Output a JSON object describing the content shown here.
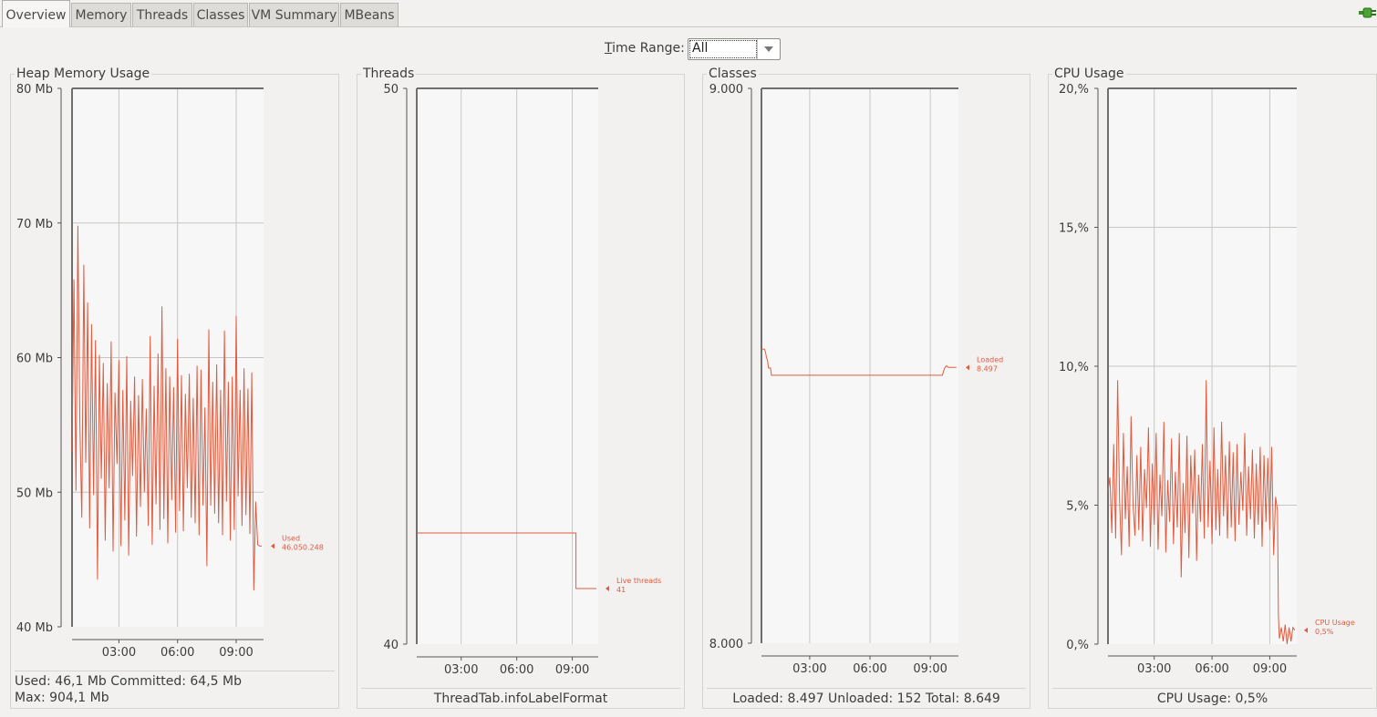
{
  "tabs": [
    {
      "label": "Overview",
      "active": true
    },
    {
      "label": "Memory",
      "active": false
    },
    {
      "label": "Threads",
      "active": false
    },
    {
      "label": "Classes",
      "active": false
    },
    {
      "label": "VM Summary",
      "active": false
    },
    {
      "label": "MBeans",
      "active": false
    }
  ],
  "connection_icon": "plug-connected-icon",
  "time_range": {
    "label_mnemonic": "T",
    "label_rest": "ime Range:",
    "value": "All"
  },
  "colors": {
    "series": "#e05a3e",
    "grid": "#c8c6c2",
    "plot_bg": "#f7f7f7"
  },
  "panels": {
    "heap": {
      "title": "Heap Memory Usage",
      "footer_line1": "Used: 46,1 Mb    Committed: 64,5 Mb",
      "footer_line2": "Max: 904,1 Mb"
    },
    "threads": {
      "title": "Threads",
      "footer": "ThreadTab.infoLabelFormat"
    },
    "classes": {
      "title": "Classes",
      "footer": "Loaded: 8.497    Unloaded: 152    Total: 8.649"
    },
    "cpu": {
      "title": "CPU Usage",
      "footer": "CPU Usage: 0,5%"
    }
  },
  "chart_data": [
    {
      "id": "heap",
      "type": "line",
      "y_ticks": [
        "80 Mb",
        "70 Mb",
        "60 Mb",
        "50 Mb",
        "40 Mb"
      ],
      "ylim": [
        40,
        80
      ],
      "y_unit": "Mb",
      "x_ticks": [
        "03:00",
        "06:00",
        "09:00"
      ],
      "xlim": [
        0.6,
        10.4
      ],
      "series": [
        {
          "name": "Used",
          "last_value_label": "46.050.248",
          "x": [
            0.6,
            0.7,
            0.8,
            0.9,
            1.0,
            1.1,
            1.2,
            1.3,
            1.4,
            1.5,
            1.6,
            1.7,
            1.8,
            1.9,
            2.0,
            2.1,
            2.2,
            2.3,
            2.4,
            2.5,
            2.6,
            2.7,
            2.8,
            2.9,
            3.0,
            3.1,
            3.2,
            3.3,
            3.4,
            3.5,
            3.6,
            3.7,
            3.8,
            3.9,
            4.0,
            4.1,
            4.2,
            4.3,
            4.4,
            4.5,
            4.6,
            4.7,
            4.8,
            4.9,
            5.0,
            5.1,
            5.2,
            5.3,
            5.4,
            5.5,
            5.6,
            5.7,
            5.8,
            5.9,
            6.0,
            6.1,
            6.2,
            6.3,
            6.4,
            6.5,
            6.6,
            6.7,
            6.8,
            6.9,
            7.0,
            7.1,
            7.2,
            7.3,
            7.4,
            7.5,
            7.6,
            7.7,
            7.8,
            7.9,
            8.0,
            8.1,
            8.2,
            8.3,
            8.4,
            8.5,
            8.6,
            8.7,
            8.8,
            8.9,
            9.0,
            9.1,
            9.2,
            9.3,
            9.4,
            9.5,
            9.6,
            9.7,
            9.8,
            9.9,
            10.0,
            10.1,
            10.2,
            10.3
          ],
          "y": [
            53,
            65.8,
            50.1,
            69.8,
            55.0,
            48.1,
            66.9,
            52.2,
            64.1,
            47.3,
            62.5,
            49.8,
            61.3,
            43.5,
            60.2,
            51.0,
            59.6,
            46.4,
            58.1,
            50.3,
            61.2,
            45.6,
            57.4,
            52.1,
            59.8,
            46.0,
            57.6,
            47.9,
            60.1,
            45.3,
            56.8,
            51.2,
            58.6,
            46.7,
            57.2,
            48.9,
            58.4,
            50.0,
            56.2,
            47.5,
            61.6,
            46.1,
            57.9,
            49.1,
            60.3,
            47.2,
            63.8,
            48.0,
            59.2,
            46.2,
            58.6,
            49.4,
            57.8,
            47.0,
            61.4,
            48.6,
            58.7,
            47.1,
            57.3,
            50.3,
            58.8,
            48.1,
            57.0,
            47.7,
            59.4,
            46.8,
            59.1,
            49.0,
            56.3,
            44.5,
            62.1,
            49.0,
            58.2,
            48.4,
            59.5,
            47.7,
            57.6,
            46.8,
            62.0,
            49.3,
            58.2,
            46.4,
            58.6,
            47.2,
            63.1,
            49.7,
            57.6,
            47.5,
            59.2,
            48.3,
            57.7,
            46.9,
            58.9,
            42.7,
            49.3,
            46.1,
            46.0,
            46.0
          ]
        }
      ]
    },
    {
      "id": "threads",
      "type": "line",
      "y_ticks": [
        "50",
        "40"
      ],
      "ylim": [
        40,
        50
      ],
      "x_ticks": [
        "03:00",
        "06:00",
        "09:00"
      ],
      "xlim": [
        0.6,
        10.4
      ],
      "series": [
        {
          "name": "Live threads",
          "last_value_label": "41",
          "x": [
            0.6,
            9.2,
            9.2,
            10.3
          ],
          "y": [
            42,
            42,
            41,
            41
          ]
        }
      ]
    },
    {
      "id": "classes",
      "type": "line",
      "y_ticks": [
        "9.000",
        "8.000"
      ],
      "ylim": [
        8000,
        9000
      ],
      "x_ticks": [
        "03:00",
        "06:00",
        "09:00"
      ],
      "xlim": [
        0.6,
        10.4
      ],
      "series": [
        {
          "name": "Loaded",
          "last_value_label": "8.497",
          "x": [
            0.6,
            0.75,
            0.8,
            0.85,
            0.9,
            0.95,
            1.05,
            1.1,
            9.6,
            9.7,
            9.8,
            9.9,
            10.0,
            10.3
          ],
          "y": [
            8530,
            8530,
            8525,
            8515,
            8510,
            8496,
            8496,
            8483,
            8483,
            8495,
            8500,
            8497,
            8497,
            8497
          ]
        }
      ]
    },
    {
      "id": "cpu",
      "type": "line",
      "y_ticks": [
        "20,%",
        "15,%",
        "10,%",
        "5,%",
        "0,%"
      ],
      "ylim": [
        0,
        20
      ],
      "y_unit": "%",
      "x_ticks": [
        "03:00",
        "06:00",
        "09:00"
      ],
      "xlim": [
        0.6,
        10.4
      ],
      "series": [
        {
          "name": "CPU Usage",
          "last_value_label": "0,5%",
          "x": [
            0.6,
            0.7,
            0.8,
            0.9,
            1.0,
            1.1,
            1.2,
            1.3,
            1.4,
            1.5,
            1.6,
            1.7,
            1.8,
            1.9,
            2.0,
            2.1,
            2.2,
            2.3,
            2.4,
            2.5,
            2.6,
            2.7,
            2.8,
            2.9,
            3.0,
            3.1,
            3.2,
            3.3,
            3.4,
            3.5,
            3.6,
            3.7,
            3.8,
            3.9,
            4.0,
            4.1,
            4.2,
            4.3,
            4.4,
            4.5,
            4.6,
            4.7,
            4.8,
            4.9,
            5.0,
            5.1,
            5.2,
            5.3,
            5.4,
            5.5,
            5.6,
            5.7,
            5.8,
            5.9,
            6.0,
            6.1,
            6.2,
            6.3,
            6.4,
            6.5,
            6.6,
            6.7,
            6.8,
            6.9,
            7.0,
            7.1,
            7.2,
            7.3,
            7.4,
            7.5,
            7.6,
            7.7,
            7.8,
            7.9,
            8.0,
            8.1,
            8.2,
            8.3,
            8.4,
            8.5,
            8.6,
            8.7,
            8.8,
            8.9,
            9.0,
            9.1,
            9.2,
            9.3,
            9.4,
            9.45,
            9.5,
            9.6,
            9.7,
            9.8,
            9.9,
            10.0,
            10.1,
            10.2,
            10.3
          ],
          "y": [
            5.5,
            6.0,
            4.0,
            7.2,
            3.8,
            9.5,
            5.2,
            3.2,
            7.6,
            4.5,
            6.4,
            3.5,
            8.2,
            5.0,
            3.9,
            6.8,
            4.1,
            7.1,
            3.7,
            6.3,
            4.9,
            7.8,
            3.5,
            6.5,
            4.3,
            7.6,
            3.4,
            6.1,
            4.6,
            8.0,
            3.3,
            5.9,
            4.4,
            7.4,
            3.6,
            6.2,
            4.2,
            7.6,
            2.4,
            5.8,
            4.0,
            7.5,
            3.1,
            6.8,
            4.7,
            7.0,
            3.0,
            6.1,
            4.4,
            7.2,
            3.8,
            9.5,
            4.2,
            6.6,
            3.6,
            7.8,
            4.1,
            6.3,
            3.9,
            8.0,
            4.6,
            6.8,
            3.8,
            7.3,
            4.2,
            6.9,
            3.7,
            7.2,
            4.3,
            6.2,
            4.8,
            7.6,
            3.9,
            6.4,
            4.5,
            7.0,
            3.8,
            6.5,
            4.3,
            7.1,
            3.5,
            6.8,
            4.4,
            6.7,
            4.1,
            7.1,
            3.2,
            5.3,
            4.8,
            1.0,
            0.2,
            0.6,
            0.1,
            0.7,
            0.0,
            0.6,
            0.1,
            0.6,
            0.5
          ]
        }
      ]
    }
  ]
}
